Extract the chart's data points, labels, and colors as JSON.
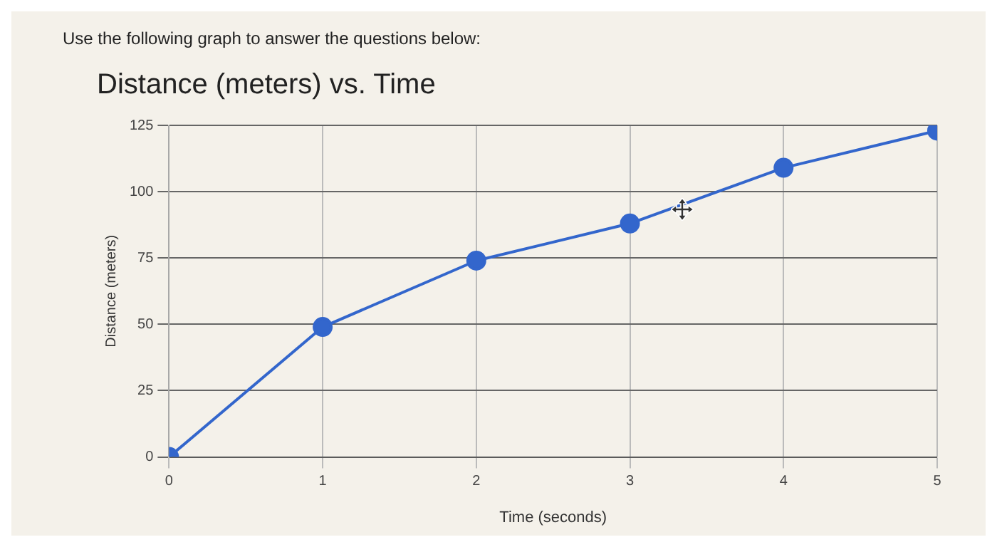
{
  "chart_data": {
    "type": "line",
    "title": "Distance (meters) vs. Time",
    "xlabel": "Time (seconds)",
    "ylabel": "Distance (meters)",
    "annotations": [
      "Use the following graph to answer the questions below:"
    ],
    "x": [
      0,
      1,
      2,
      3,
      4,
      5
    ],
    "series": [
      {
        "color": "#3366cc",
        "values": [
          0,
          49,
          74,
          88,
          109,
          123
        ]
      }
    ],
    "xlim": [
      0,
      5
    ],
    "xticks": [
      0,
      1,
      2,
      3,
      4,
      5
    ],
    "ylim": [
      0,
      125
    ],
    "yticks": [
      0,
      25,
      50,
      75,
      100,
      125
    ],
    "grid": true,
    "legend": false,
    "marker": "circle",
    "line_style": "solid"
  }
}
